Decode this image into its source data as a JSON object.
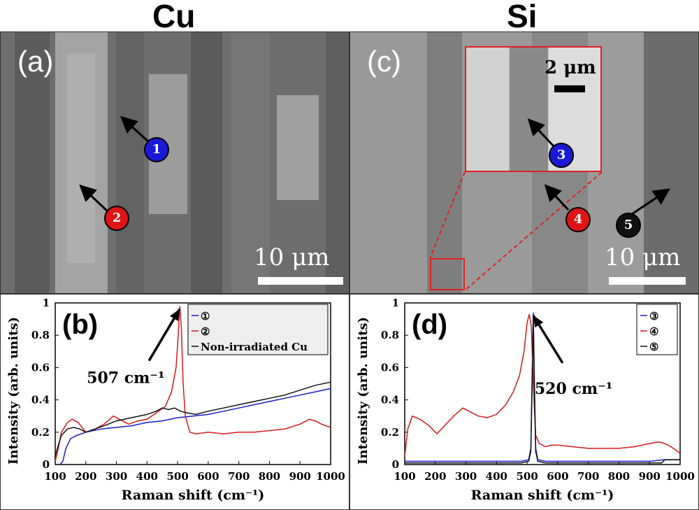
{
  "titles": {
    "left": "Cu",
    "right": "Si"
  },
  "panel_a": {
    "label": "(a)",
    "scale_text": "10 μm",
    "markers": [
      {
        "num": "1",
        "color": "#1a1ad6"
      },
      {
        "num": "2",
        "color": "#e01414"
      }
    ]
  },
  "panel_c": {
    "label": "(c)",
    "scale_text": "10 μm",
    "inset_scale_text": "2 μm",
    "inset_border": "#e02020",
    "markers": [
      {
        "num": "3",
        "color": "#1a1ad6"
      },
      {
        "num": "4",
        "color": "#e01414"
      },
      {
        "num": "5",
        "color": "#111111"
      }
    ]
  },
  "chart_data": [
    {
      "type": "line",
      "panel_label": "(b)",
      "xlabel": "Raman shift (cm⁻¹)",
      "ylabel": "Intensity (arb. units)",
      "xlim": [
        100,
        1000
      ],
      "ylim": [
        0,
        1
      ],
      "xticks": [
        "100",
        "200",
        "300",
        "400",
        "500",
        "600",
        "700",
        "800",
        "900",
        "1000"
      ],
      "yticks": [
        "0",
        "0.2",
        "0.4",
        "0.6",
        "0.8",
        "1"
      ],
      "annotation": {
        "text": "507 cm⁻¹",
        "x": 507,
        "y": 0.98
      },
      "legend": [
        "①",
        "②",
        "Non-irradiated Cu"
      ],
      "series": [
        {
          "name": "①",
          "color": "#1a1ad6",
          "x": [
            115,
            125,
            135,
            150,
            170,
            200,
            250,
            300,
            350,
            400,
            450,
            500,
            550,
            600,
            650,
            700,
            750,
            800,
            850,
            900,
            950,
            1000
          ],
          "y": [
            0.0,
            0.02,
            0.1,
            0.16,
            0.18,
            0.2,
            0.22,
            0.23,
            0.24,
            0.26,
            0.27,
            0.29,
            0.3,
            0.31,
            0.33,
            0.35,
            0.37,
            0.39,
            0.41,
            0.43,
            0.45,
            0.47
          ]
        },
        {
          "name": "②",
          "color": "#d41a1a",
          "x": [
            100,
            110,
            120,
            140,
            155,
            175,
            200,
            230,
            260,
            290,
            310,
            340,
            370,
            400,
            430,
            460,
            480,
            495,
            502,
            507,
            512,
            518,
            525,
            540,
            560,
            600,
            650,
            700,
            750,
            800,
            850,
            900,
            930,
            950,
            970,
            1000
          ],
          "y": [
            0.02,
            0.1,
            0.2,
            0.26,
            0.28,
            0.26,
            0.2,
            0.22,
            0.25,
            0.3,
            0.28,
            0.25,
            0.27,
            0.28,
            0.32,
            0.36,
            0.45,
            0.6,
            0.8,
            0.98,
            0.85,
            0.5,
            0.3,
            0.2,
            0.19,
            0.2,
            0.19,
            0.2,
            0.2,
            0.21,
            0.22,
            0.25,
            0.28,
            0.27,
            0.25,
            0.23
          ]
        },
        {
          "name": "Non-irradiated Cu",
          "color": "#111111",
          "x": [
            100,
            110,
            120,
            140,
            160,
            180,
            200,
            230,
            260,
            300,
            350,
            400,
            430,
            450,
            470,
            490,
            510,
            530,
            560,
            600,
            650,
            700,
            750,
            800,
            850,
            900,
            950,
            1000
          ],
          "y": [
            0.05,
            0.12,
            0.18,
            0.22,
            0.23,
            0.22,
            0.2,
            0.22,
            0.24,
            0.27,
            0.29,
            0.31,
            0.33,
            0.35,
            0.34,
            0.35,
            0.33,
            0.32,
            0.31,
            0.33,
            0.35,
            0.37,
            0.39,
            0.41,
            0.43,
            0.46,
            0.49,
            0.51
          ]
        }
      ]
    },
    {
      "type": "line",
      "panel_label": "(d)",
      "xlabel": "Raman shift (cm⁻¹)",
      "ylabel": "Intensity (arb. units)",
      "xlim": [
        100,
        1000
      ],
      "ylim": [
        0,
        1
      ],
      "xticks": [
        "100",
        "200",
        "300",
        "400",
        "500",
        "600",
        "700",
        "800",
        "900",
        "1000"
      ],
      "yticks": [
        "0",
        "0.2",
        "0.4",
        "0.6",
        "0.8",
        "1"
      ],
      "annotation": {
        "text": "520 cm⁻¹",
        "x": 520,
        "y": 0.94
      },
      "legend": [
        "③",
        "④",
        "⑤"
      ],
      "series": [
        {
          "name": "③",
          "color": "#1a1ad6",
          "x": [
            100,
            200,
            300,
            400,
            480,
            505,
            512,
            516,
            520,
            524,
            528,
            535,
            560,
            600,
            700,
            800,
            900,
            950,
            1000
          ],
          "y": [
            0.02,
            0.02,
            0.02,
            0.02,
            0.02,
            0.03,
            0.1,
            0.5,
            0.94,
            0.5,
            0.1,
            0.03,
            0.02,
            0.02,
            0.02,
            0.02,
            0.02,
            0.03,
            0.03
          ]
        },
        {
          "name": "④",
          "color": "#d41a1a",
          "x": [
            100,
            110,
            125,
            150,
            180,
            205,
            230,
            260,
            290,
            310,
            340,
            370,
            400,
            430,
            455,
            475,
            490,
            500,
            507,
            514,
            520,
            528,
            540,
            560,
            580,
            600,
            650,
            700,
            750,
            800,
            850,
            900,
            930,
            950,
            970,
            1000
          ],
          "y": [
            0.05,
            0.22,
            0.3,
            0.28,
            0.24,
            0.19,
            0.24,
            0.3,
            0.35,
            0.33,
            0.3,
            0.29,
            0.31,
            0.37,
            0.45,
            0.55,
            0.7,
            0.88,
            0.93,
            0.85,
            0.5,
            0.18,
            0.13,
            0.11,
            0.12,
            0.12,
            0.11,
            0.1,
            0.1,
            0.1,
            0.11,
            0.13,
            0.14,
            0.13,
            0.11,
            0.07
          ]
        },
        {
          "name": "⑤",
          "color": "#111111",
          "x": [
            100,
            200,
            300,
            400,
            480,
            505,
            512,
            516,
            520,
            524,
            528,
            535,
            560,
            600,
            700,
            800,
            900,
            940,
            950,
            1000
          ],
          "y": [
            0.01,
            0.01,
            0.01,
            0.01,
            0.01,
            0.02,
            0.08,
            0.45,
            0.9,
            0.45,
            0.08,
            0.02,
            0.01,
            0.01,
            0.01,
            0.01,
            0.01,
            0.01,
            0.03,
            0.03
          ]
        }
      ]
    }
  ]
}
